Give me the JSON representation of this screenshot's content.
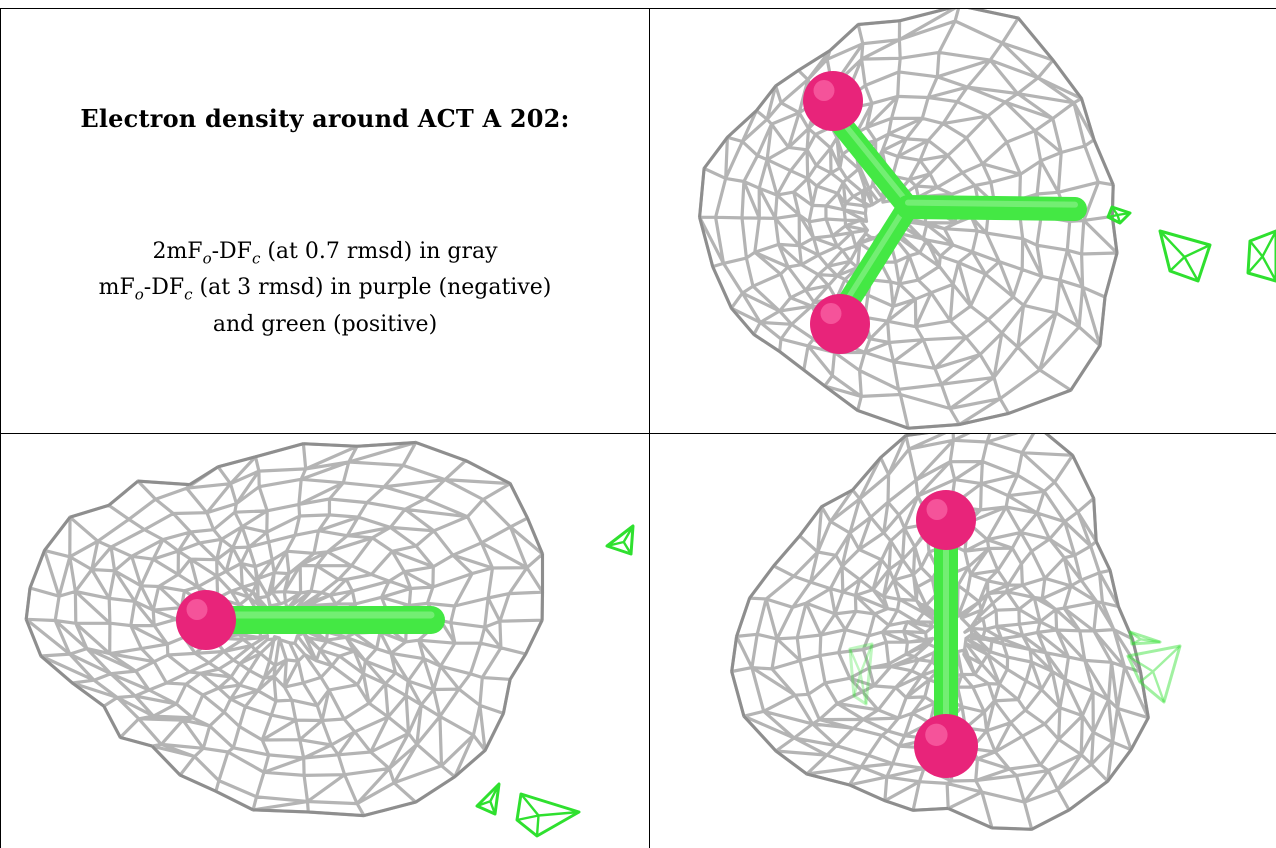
{
  "caption": {
    "title": "Electron density around ACT A 202:",
    "line1": {
      "prefix": "2mF",
      "sub_o": "o",
      "mid": "-DF",
      "sub_c": "c",
      "suffix": " (at 0.7 rmsd) in gray"
    },
    "line2": {
      "prefix": "mF",
      "sub_o": "o",
      "mid": "-DF",
      "sub_c": "c",
      "suffix": " (at 3 rmsd) in purple (negative)"
    },
    "line3": "and green (positive)"
  },
  "colors": {
    "mesh_gray": "#b4b4b4",
    "mesh_dark": "#8e8e8e",
    "carbon_green": "#44e844",
    "oxygen_magenta": "#e8247a",
    "positive_green": "#2fe02f",
    "grid_line": "#000000",
    "background": "#ffffff"
  },
  "icons": [
    "oxygen-atom-sphere",
    "carbon-bond-stick",
    "density-mesh"
  ]
}
